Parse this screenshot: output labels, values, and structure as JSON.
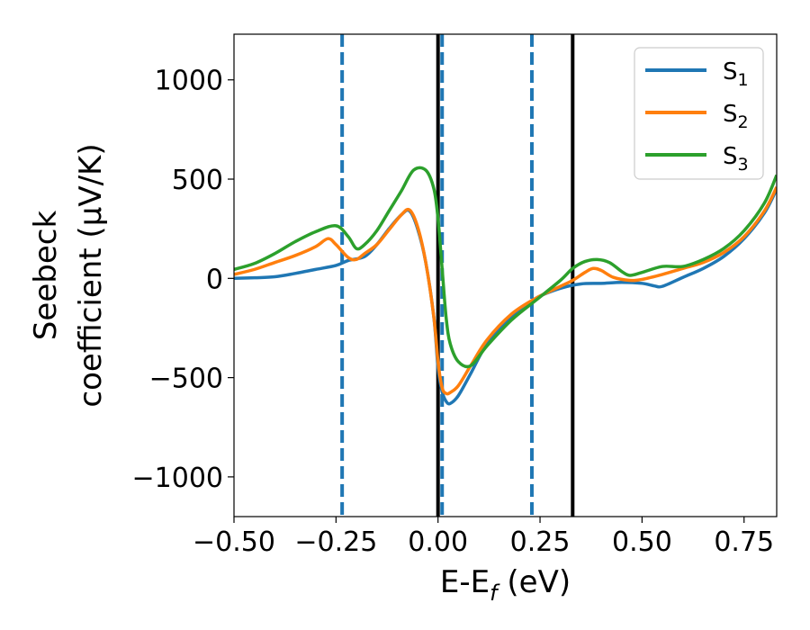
{
  "chart_data": {
    "type": "line",
    "title": "",
    "xlabel": "E-E_f (eV)",
    "ylabel_line1": "Seebeck",
    "ylabel_line2": "coefficient  (μV/K)",
    "xlim": [
      -0.5,
      0.83
    ],
    "ylim": [
      -1200,
      1230
    ],
    "x_ticks": [
      -0.5,
      -0.25,
      0.0,
      0.25,
      0.5,
      0.75
    ],
    "x_tick_labels": [
      "−0.50",
      "−0.25",
      "0.00",
      "0.25",
      "0.50",
      "0.75"
    ],
    "y_ticks": [
      -1000,
      -500,
      0,
      500,
      1000
    ],
    "y_tick_labels": [
      "−1000",
      "−500",
      "0",
      "500",
      "1000"
    ],
    "grid": false,
    "legend_position": "top-right",
    "vlines_dashed": {
      "color": "#1f77b4",
      "x": [
        -0.235,
        0.01,
        0.23
      ]
    },
    "vlines_solid": {
      "color": "#000000",
      "x": [
        0.0,
        0.33
      ]
    },
    "series": [
      {
        "name": "S",
        "subscript": "1",
        "color": "#1f77b4",
        "x": [
          -0.5,
          -0.45,
          -0.4,
          -0.35,
          -0.3,
          -0.25,
          -0.22,
          -0.18,
          -0.15,
          -0.12,
          -0.09,
          -0.07,
          -0.05,
          -0.03,
          -0.01,
          0.0,
          0.01,
          0.02,
          0.03,
          0.05,
          0.08,
          0.12,
          0.18,
          0.24,
          0.3,
          0.35,
          0.4,
          0.45,
          0.5,
          0.53,
          0.55,
          0.6,
          0.65,
          0.7,
          0.75,
          0.8,
          0.83
        ],
        "values": [
          0,
          3,
          8,
          25,
          45,
          65,
          90,
          110,
          170,
          250,
          320,
          340,
          250,
          80,
          -200,
          -450,
          -570,
          -620,
          -630,
          -590,
          -480,
          -330,
          -190,
          -100,
          -50,
          -28,
          -25,
          -20,
          -25,
          -38,
          -40,
          5,
          50,
          110,
          200,
          330,
          450
        ]
      },
      {
        "name": "S",
        "subscript": "2",
        "color": "#ff7f0e",
        "x": [
          -0.5,
          -0.45,
          -0.4,
          -0.35,
          -0.3,
          -0.27,
          -0.25,
          -0.22,
          -0.2,
          -0.18,
          -0.15,
          -0.12,
          -0.09,
          -0.07,
          -0.05,
          -0.03,
          -0.01,
          0.0,
          0.01,
          0.02,
          0.03,
          0.05,
          0.08,
          0.12,
          0.18,
          0.24,
          0.3,
          0.33,
          0.36,
          0.38,
          0.4,
          0.43,
          0.47,
          0.5,
          0.55,
          0.6,
          0.65,
          0.7,
          0.75,
          0.8,
          0.83
        ],
        "values": [
          20,
          45,
          80,
          115,
          160,
          200,
          170,
          105,
          95,
          125,
          170,
          245,
          320,
          345,
          260,
          80,
          -200,
          -420,
          -550,
          -580,
          -575,
          -540,
          -440,
          -310,
          -180,
          -100,
          -40,
          -10,
          30,
          50,
          40,
          5,
          -10,
          -5,
          20,
          50,
          80,
          130,
          210,
          340,
          460
        ]
      },
      {
        "name": "S",
        "subscript": "3",
        "color": "#2ca02c",
        "x": [
          -0.5,
          -0.45,
          -0.4,
          -0.35,
          -0.3,
          -0.25,
          -0.22,
          -0.2,
          -0.18,
          -0.15,
          -0.12,
          -0.09,
          -0.06,
          -0.03,
          -0.01,
          0.0,
          0.01,
          0.02,
          0.03,
          0.05,
          0.08,
          0.12,
          0.18,
          0.24,
          0.3,
          0.33,
          0.36,
          0.39,
          0.42,
          0.45,
          0.47,
          0.5,
          0.55,
          0.6,
          0.65,
          0.7,
          0.75,
          0.8,
          0.83
        ],
        "values": [
          45,
          75,
          125,
          185,
          235,
          265,
          210,
          150,
          170,
          240,
          340,
          440,
          545,
          545,
          450,
          300,
          50,
          -200,
          -330,
          -420,
          -440,
          -340,
          -210,
          -110,
          -10,
          50,
          85,
          95,
          80,
          35,
          15,
          30,
          60,
          60,
          95,
          150,
          240,
          380,
          520
        ]
      }
    ]
  }
}
